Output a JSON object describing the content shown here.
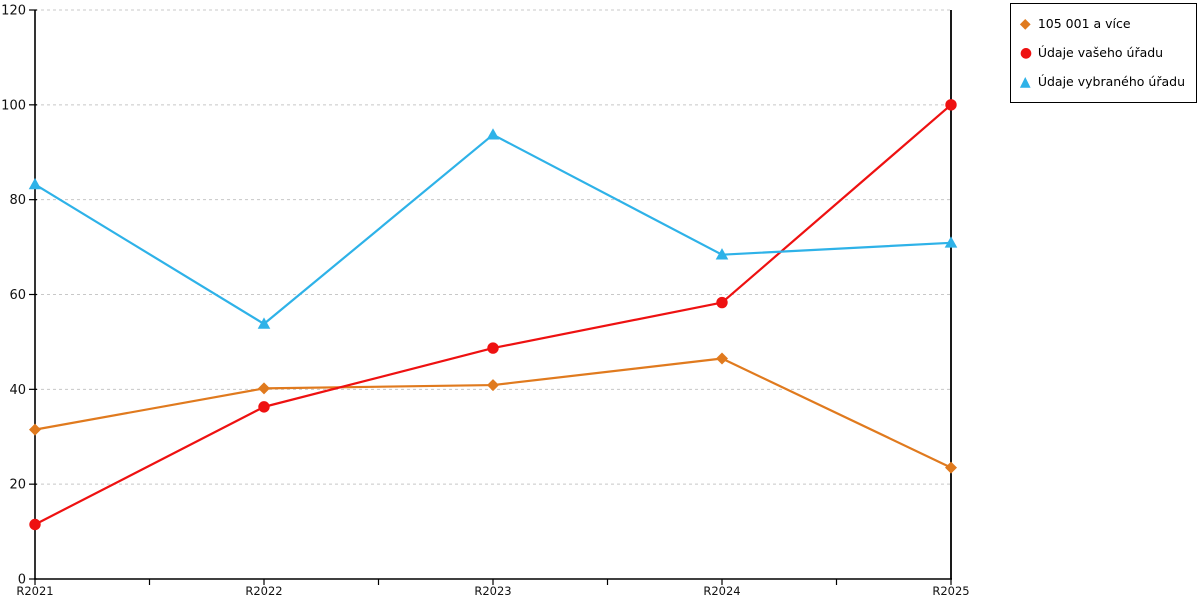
{
  "chart_data": {
    "type": "line",
    "title": "",
    "xlabel": "",
    "ylabel": "",
    "categories": [
      "R2021",
      "R2022",
      "R2023",
      "R2024",
      "R2025"
    ],
    "yticks": [
      0,
      20,
      40,
      60,
      80,
      100,
      120
    ],
    "ylim": [
      0,
      120
    ],
    "grid": "horizontal-dashed",
    "grid_color": "#c8c8c8",
    "axis_color": "#000000",
    "legend_position": "top-right",
    "minor_ticks_between_categories": true,
    "series": [
      {
        "name": "105 001 a více",
        "marker": "diamond",
        "color": "#e07a1e",
        "values": [
          31.5,
          40.2,
          40.9,
          46.5,
          23.5
        ]
      },
      {
        "name": "Údaje vašeho úřadu",
        "marker": "circle",
        "color": "#ee1111",
        "values": [
          11.5,
          36.3,
          48.7,
          58.3,
          100
        ]
      },
      {
        "name": "Údaje vybraného úřadu",
        "marker": "triangle",
        "color": "#2eb2e8",
        "values": [
          83.2,
          53.8,
          93.7,
          68.4,
          70.9
        ]
      }
    ]
  }
}
